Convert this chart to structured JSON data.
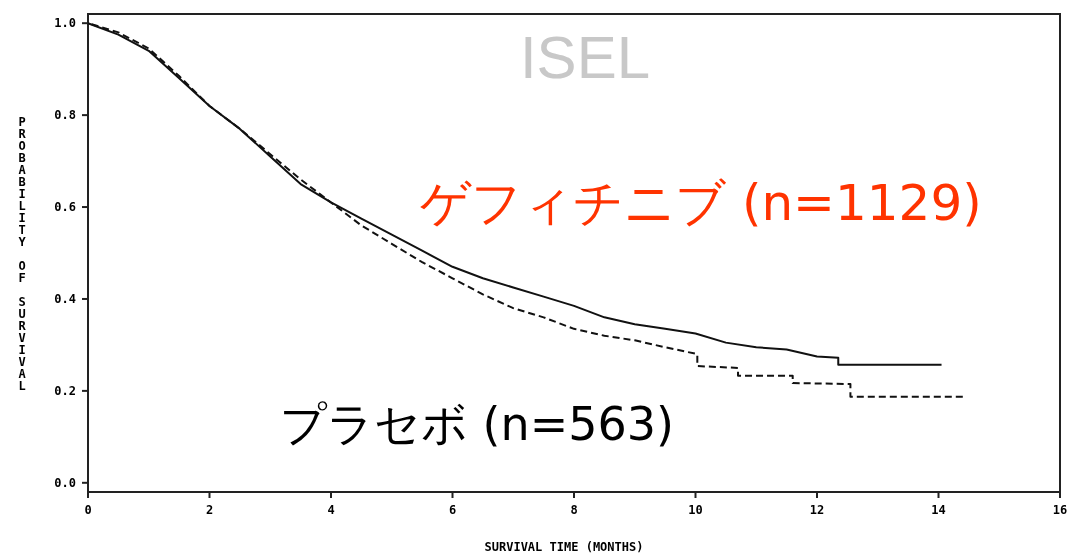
{
  "chart_data": {
    "type": "line",
    "title": "ISEL",
    "xlabel": "SURVIVAL TIME (MONTHS)",
    "ylabel": "PROBABILITY OF SURVIVAL",
    "xlim": [
      0,
      16
    ],
    "xticks": [
      0,
      2,
      4,
      6,
      8,
      10,
      12,
      14,
      16
    ],
    "ylim": [
      -0.02,
      1.02
    ],
    "yticks": [
      {
        "value": 0,
        "label": "0.0"
      },
      {
        "value": 0.2,
        "label": "0.2"
      },
      {
        "value": 0.4,
        "label": "0.4"
      },
      {
        "value": 0.6,
        "label": "0.6"
      },
      {
        "value": 0.8,
        "label": "0.8"
      },
      {
        "value": 1,
        "label": "1.0"
      }
    ],
    "grid": false,
    "marker": "none",
    "series": [
      {
        "name": "ゲフィチニブ (n=1129)",
        "color": "#111111",
        "line_style": "solid",
        "x": [
          0,
          0.5,
          1,
          1.5,
          2,
          2.5,
          3,
          3.5,
          4,
          4.5,
          5,
          5.5,
          6,
          6.5,
          7,
          7.5,
          8,
          8.5,
          9,
          9.5,
          10,
          10.5,
          11,
          11.5,
          12,
          12.35,
          12.35,
          14.05
        ],
        "values": [
          1.0,
          0.975,
          0.94,
          0.88,
          0.82,
          0.77,
          0.71,
          0.65,
          0.61,
          0.575,
          0.54,
          0.505,
          0.47,
          0.445,
          0.425,
          0.405,
          0.385,
          0.36,
          0.345,
          0.335,
          0.325,
          0.305,
          0.295,
          0.29,
          0.275,
          0.272,
          0.257,
          0.257
        ]
      },
      {
        "name": "プラセボ (n=563)",
        "color": "#111111",
        "line_style": "dashed",
        "x": [
          0,
          0.5,
          1,
          1.5,
          2,
          2.5,
          3,
          3.5,
          4,
          4.5,
          5,
          5.5,
          6,
          6.5,
          7,
          7.5,
          8,
          8.5,
          9,
          9.5,
          10.03,
          10.03,
          10.7,
          10.7,
          11.6,
          11.6,
          12.55,
          12.55,
          14.4
        ],
        "values": [
          1.0,
          0.98,
          0.945,
          0.885,
          0.82,
          0.77,
          0.715,
          0.66,
          0.61,
          0.56,
          0.52,
          0.48,
          0.445,
          0.41,
          0.38,
          0.36,
          0.335,
          0.32,
          0.31,
          0.295,
          0.28,
          0.254,
          0.25,
          0.233,
          0.233,
          0.217,
          0.215,
          0.187,
          0.187
        ]
      }
    ]
  }
}
